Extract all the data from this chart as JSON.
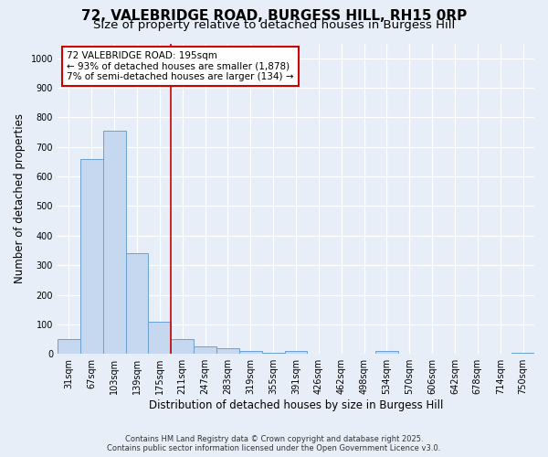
{
  "title_line1": "72, VALEBRIDGE ROAD, BURGESS HILL, RH15 0RP",
  "title_line2": "Size of property relative to detached houses in Burgess Hill",
  "xlabel": "Distribution of detached houses by size in Burgess Hill",
  "ylabel": "Number of detached properties",
  "bar_color": "#c5d8f0",
  "bar_edge_color": "#6aa0d0",
  "vline_color": "#cc0000",
  "annotation_box_color": "#cc0000",
  "categories": [
    "31sqm",
    "67sqm",
    "103sqm",
    "139sqm",
    "175sqm",
    "211sqm",
    "247sqm",
    "283sqm",
    "319sqm",
    "355sqm",
    "391sqm",
    "426sqm",
    "462sqm",
    "498sqm",
    "534sqm",
    "570sqm",
    "606sqm",
    "642sqm",
    "678sqm",
    "714sqm",
    "750sqm"
  ],
  "values": [
    50,
    660,
    755,
    340,
    110,
    50,
    25,
    20,
    10,
    5,
    10,
    0,
    0,
    0,
    10,
    0,
    0,
    0,
    0,
    0,
    5
  ],
  "vline_x": 4.5,
  "annotation_text": "72 VALEBRIDGE ROAD: 195sqm\n← 93% of detached houses are smaller (1,878)\n7% of semi-detached houses are larger (134) →",
  "ylim": [
    0,
    1050
  ],
  "yticks": [
    0,
    100,
    200,
    300,
    400,
    500,
    600,
    700,
    800,
    900,
    1000
  ],
  "bg_color": "#e8eef8",
  "plot_bg_color": "#e8eef8",
  "title_fontsize": 11,
  "subtitle_fontsize": 9.5,
  "tick_fontsize": 7,
  "label_fontsize": 8.5,
  "footer_line1": "Contains HM Land Registry data © Crown copyright and database right 2025.",
  "footer_line2": "Contains public sector information licensed under the Open Government Licence v3.0."
}
